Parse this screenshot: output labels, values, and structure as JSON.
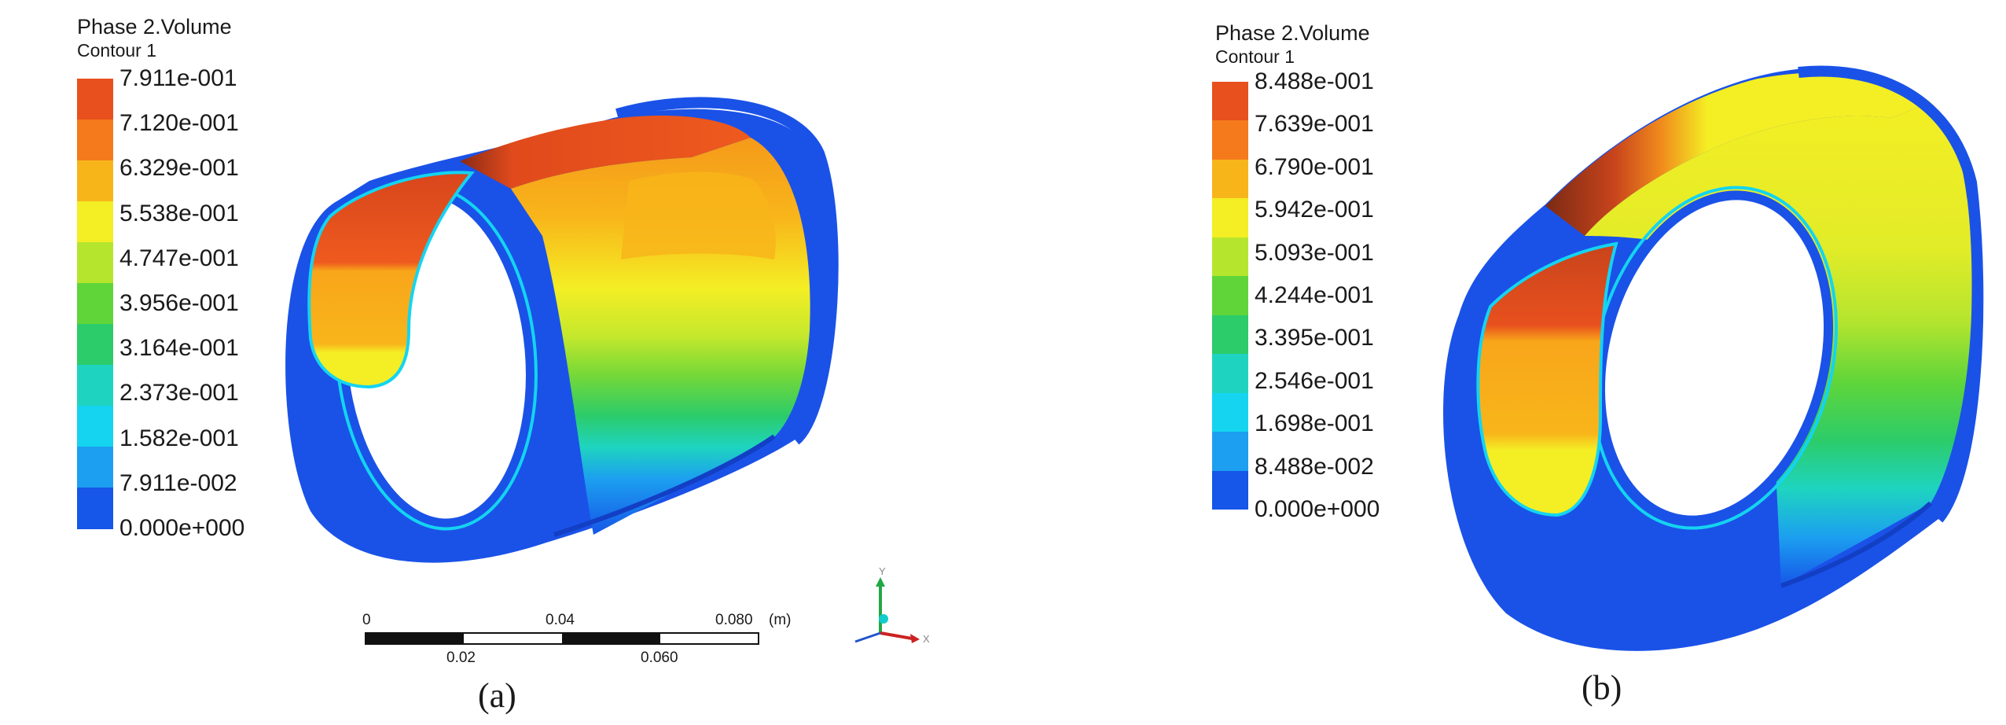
{
  "panel_a": {
    "legend_title": "Phase 2.Volume",
    "legend_subtitle": "Contour 1",
    "legend_labels": [
      "7.911e-001",
      "7.120e-001",
      "6.329e-001",
      "5.538e-001",
      "4.747e-001",
      "3.956e-001",
      "3.164e-001",
      "2.373e-001",
      "1.582e-001",
      "7.911e-002",
      "0.000e+000"
    ],
    "scale_labels_top": [
      "0",
      "0.04",
      "0.080",
      "(m)"
    ],
    "scale_labels_bottom": [
      "0.02",
      "0.060"
    ],
    "axis_labels": {
      "y": "Y",
      "x": "X"
    },
    "caption": "(a)"
  },
  "panel_b": {
    "legend_title": "Phase 2.Volume",
    "legend_subtitle": "Contour 1",
    "legend_labels": [
      "8.488e-001",
      "7.639e-001",
      "6.790e-001",
      "5.942e-001",
      "5.093e-001",
      "4.244e-001",
      "3.395e-001",
      "2.546e-001",
      "1.698e-001",
      "8.488e-002",
      "0.000e+000"
    ],
    "caption": "(b)"
  },
  "colors": {
    "legend_bands": [
      "#e8501e",
      "#f47a1c",
      "#f8b51a",
      "#f4ee24",
      "#b6e52e",
      "#5fd53a",
      "#2ccc6a",
      "#1ed4c0",
      "#14d4f0",
      "#1c9ff0",
      "#1656e8"
    ],
    "ring": "#1a52e8",
    "scale_black": "#111111",
    "axis_green": "#22a844",
    "axis_red": "#cc2222",
    "axis_cyan": "#11cccc"
  }
}
